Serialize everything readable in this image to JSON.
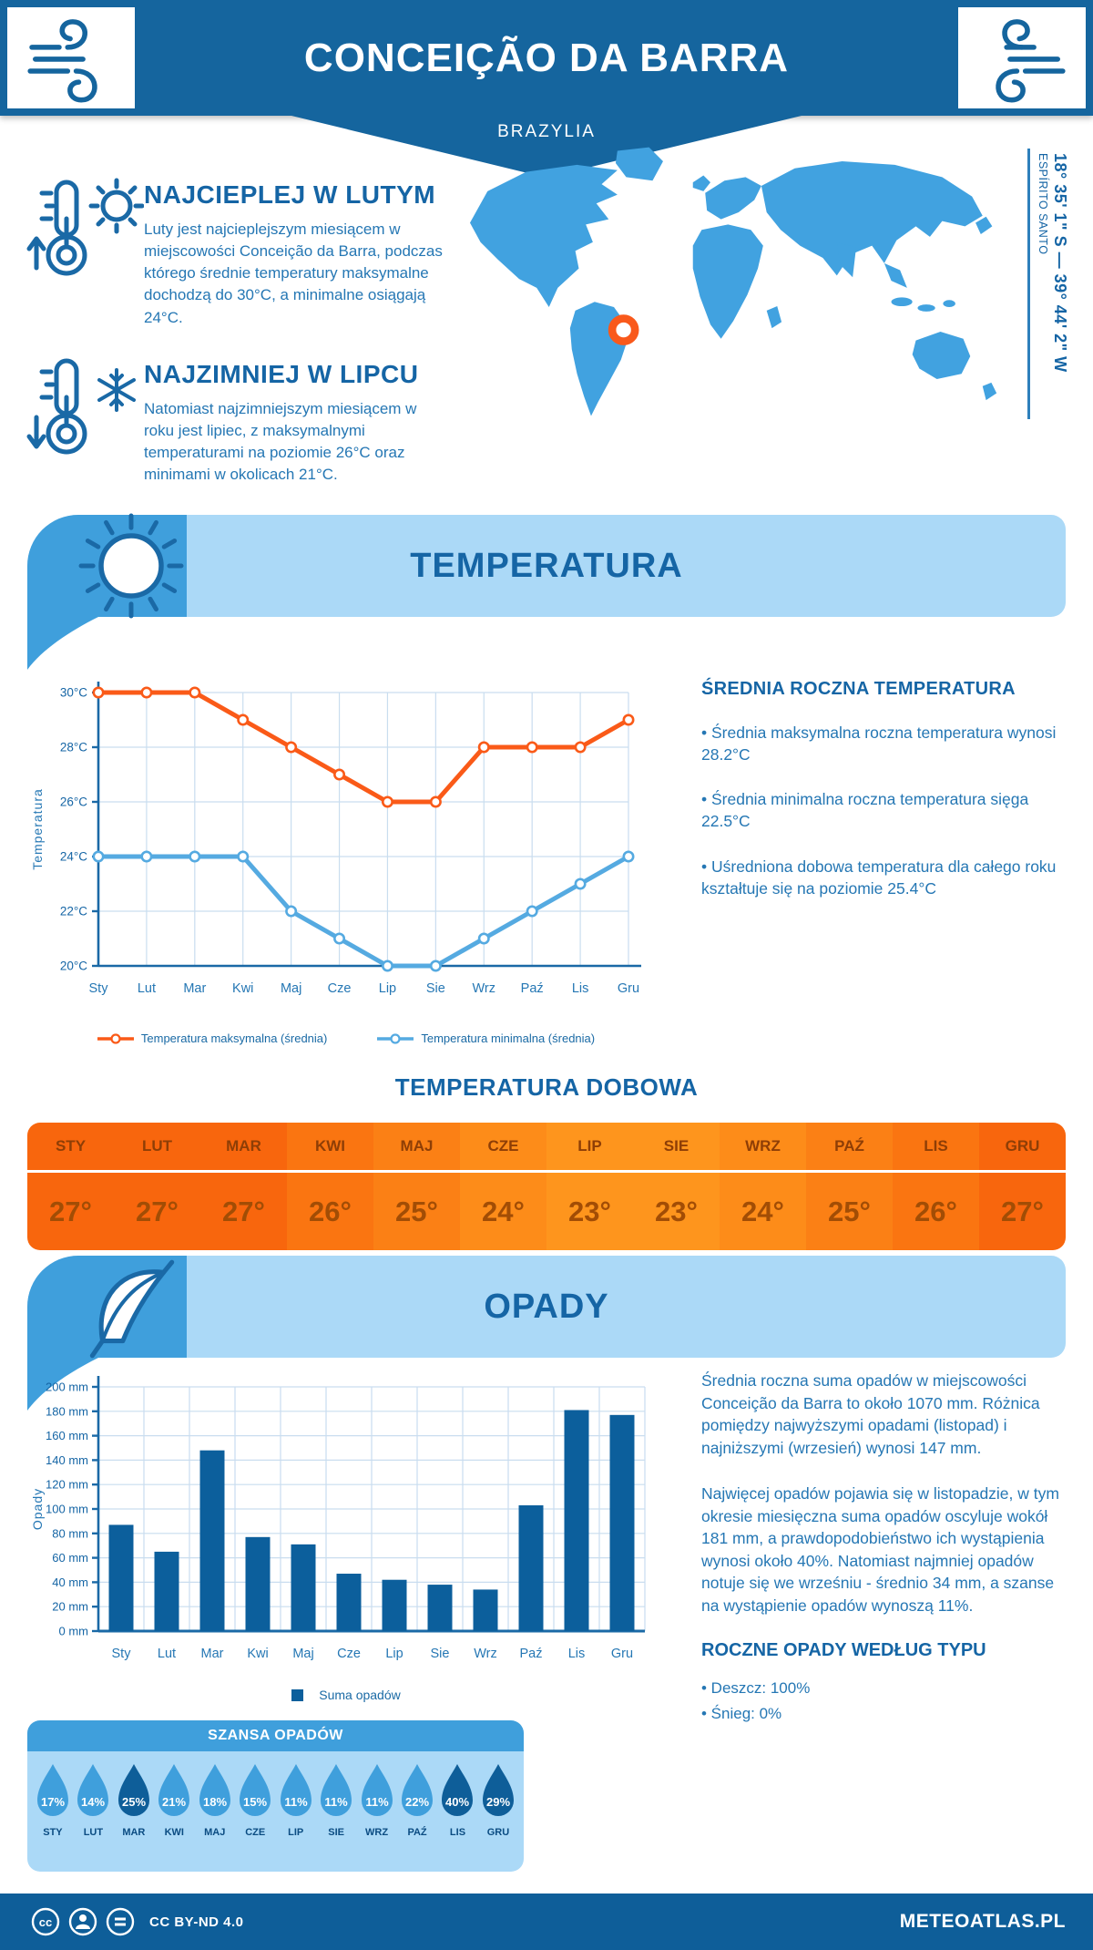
{
  "header": {
    "title": "CONCEIÇÃO DA BARRA",
    "subtitle": "BRAZYLIA"
  },
  "intro": {
    "warm": {
      "heading": "NAJCIEPLEJ W LUTYM",
      "text": "Luty jest najcieplejszym miesiącem w miejscowości Conceição da Barra, podczas którego średnie temperatury maksymalne dochodzą do 30°C, a minimalne osiągają 24°C."
    },
    "cold": {
      "heading": "NAJZIMNIEJ W LIPCU",
      "text": "Natomiast najzimniejszym miesiącem w roku jest lipiec, z maksymalnymi temperaturami na poziomie 26°C oraz minimami w okolicach 21°C."
    },
    "coordinates": "18° 35' 1\" S — 39° 44' 2\" W",
    "region": "ESPÍRITO SANTO"
  },
  "temperature_section": {
    "title": "TEMPERATURA",
    "summary": {
      "heading": "ŚREDNIA ROCZNA TEMPERATURA",
      "bullets": [
        "• Średnia maksymalna roczna temperatura wynosi 28.2°C",
        "• Średnia minimalna roczna temperatura sięga 22.5°C",
        "• Uśredniona dobowa temperatura dla całego roku kształtuje się na poziomie 25.4°C"
      ]
    },
    "daily": {
      "title": "TEMPERATURA DOBOWA",
      "months": [
        "STY",
        "LUT",
        "MAR",
        "KWI",
        "MAJ",
        "CZE",
        "LIP",
        "SIE",
        "WRZ",
        "PAŹ",
        "LIS",
        "GRU"
      ],
      "values": [
        "27°",
        "27°",
        "27°",
        "26°",
        "25°",
        "24°",
        "23°",
        "23°",
        "24°",
        "25°",
        "26°",
        "27°"
      ],
      "cell_colors": [
        "#F8660D",
        "#F8660D",
        "#F8660D",
        "#FA7511",
        "#FB8015",
        "#FD8C19",
        "#FE951D",
        "#FE951D",
        "#FD8C19",
        "#FB8015",
        "#FA7511",
        "#F8660D"
      ]
    }
  },
  "precipitation_section": {
    "title": "OPADY",
    "text": [
      "Średnia roczna suma opadów w miejscowości Conceição da Barra to około 1070 mm. Różnica pomiędzy najwyższymi opadami (listopad) i najniższymi (wrzesień) wynosi 147 mm.",
      "Najwięcej opadów pojawia się w listopadzie, w tym okresie miesięczna suma opadów oscyluje wokół 181 mm, a prawdopodobieństwo ich wystąpienia wynosi około 40%. Natomiast najmniej opadów notuje się we wrześniu - średnio 34 mm, a szanse na wystąpienie opadów wynoszą 11%."
    ],
    "type_summary": {
      "heading": "ROCZNE OPADY WEDŁUG TYPU",
      "bullets": [
        "• Deszcz: 100%",
        "• Śnieg: 0%"
      ]
    },
    "chance": {
      "title": "SZANSA OPADÓW",
      "light_color": "#3F9FDC",
      "dark_color": "#0E5E99",
      "items": [
        {
          "month": "STY",
          "value": "17%",
          "dark": false
        },
        {
          "month": "LUT",
          "value": "14%",
          "dark": false
        },
        {
          "month": "MAR",
          "value": "25%",
          "dark": true
        },
        {
          "month": "KWI",
          "value": "21%",
          "dark": false
        },
        {
          "month": "MAJ",
          "value": "18%",
          "dark": false
        },
        {
          "month": "CZE",
          "value": "15%",
          "dark": false
        },
        {
          "month": "LIP",
          "value": "11%",
          "dark": false
        },
        {
          "month": "SIE",
          "value": "11%",
          "dark": false
        },
        {
          "month": "WRZ",
          "value": "11%",
          "dark": false
        },
        {
          "month": "PAŹ",
          "value": "22%",
          "dark": false
        },
        {
          "month": "LIS",
          "value": "40%",
          "dark": true
        },
        {
          "month": "GRU",
          "value": "29%",
          "dark": true
        }
      ]
    }
  },
  "footer": {
    "license": "CC BY-ND 4.0",
    "brand": "METEOATLAS.PL"
  },
  "chart_data": [
    {
      "type": "line",
      "title": "TEMPERATURA",
      "categories": [
        "Sty",
        "Lut",
        "Mar",
        "Kwi",
        "Maj",
        "Cze",
        "Lip",
        "Sie",
        "Wrz",
        "Paź",
        "Lis",
        "Gru"
      ],
      "series": [
        {
          "name": "Temperatura maksymalna (średnia)",
          "color": "#FA5A18",
          "values": [
            30,
            30,
            30,
            29,
            28,
            27,
            26,
            26,
            28,
            28,
            28,
            29
          ]
        },
        {
          "name": "Temperatura minimalna (średnia)",
          "color": "#55AAE1",
          "values": [
            24,
            24,
            24,
            24,
            22,
            21,
            20,
            20,
            21,
            22,
            23,
            24
          ]
        }
      ],
      "xlabel": "",
      "ylabel": "Temperatura",
      "ylim": [
        20,
        30
      ],
      "ytick_step": 2,
      "ytick_suffix": "°C",
      "grid": true,
      "legend_position": "bottom"
    },
    {
      "type": "bar",
      "title": "OPADY",
      "categories": [
        "Sty",
        "Lut",
        "Mar",
        "Kwi",
        "Maj",
        "Cze",
        "Lip",
        "Sie",
        "Wrz",
        "Paź",
        "Lis",
        "Gru"
      ],
      "series": [
        {
          "name": "Suma opadów",
          "color": "#0C5F9C",
          "values": [
            87,
            65,
            148,
            77,
            71,
            47,
            42,
            38,
            34,
            103,
            181,
            177
          ]
        }
      ],
      "xlabel": "",
      "ylabel": "Opady",
      "ylim": [
        0,
        200
      ],
      "ytick_step": 20,
      "ytick_suffix": " mm",
      "grid": true,
      "legend_position": "bottom"
    }
  ]
}
